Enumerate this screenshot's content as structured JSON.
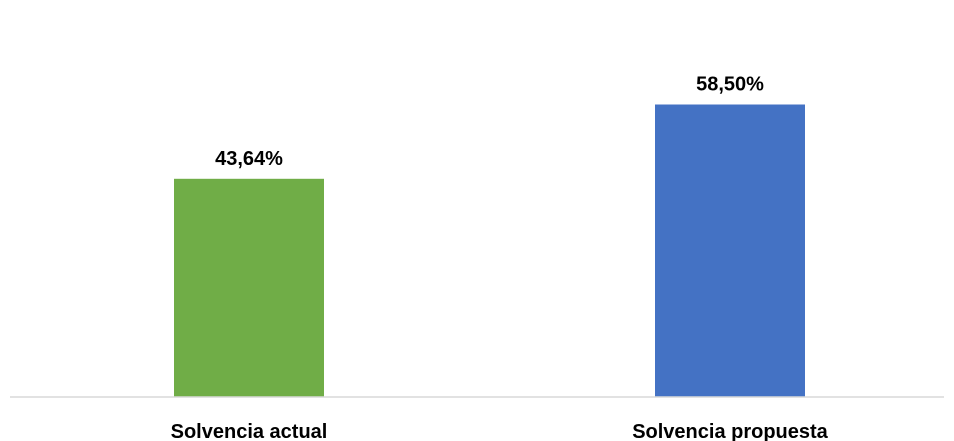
{
  "chart_data": {
    "type": "bar",
    "categories": [
      "Solvencia actual",
      "Solvencia propuesta"
    ],
    "values": [
      43.64,
      58.5
    ],
    "value_labels": [
      "43,64%",
      "58,50%"
    ],
    "colors": [
      "#70AD47",
      "#4472C4"
    ],
    "ylim": [
      0,
      65
    ],
    "grid": false,
    "title": "",
    "xlabel": "",
    "ylabel": ""
  }
}
